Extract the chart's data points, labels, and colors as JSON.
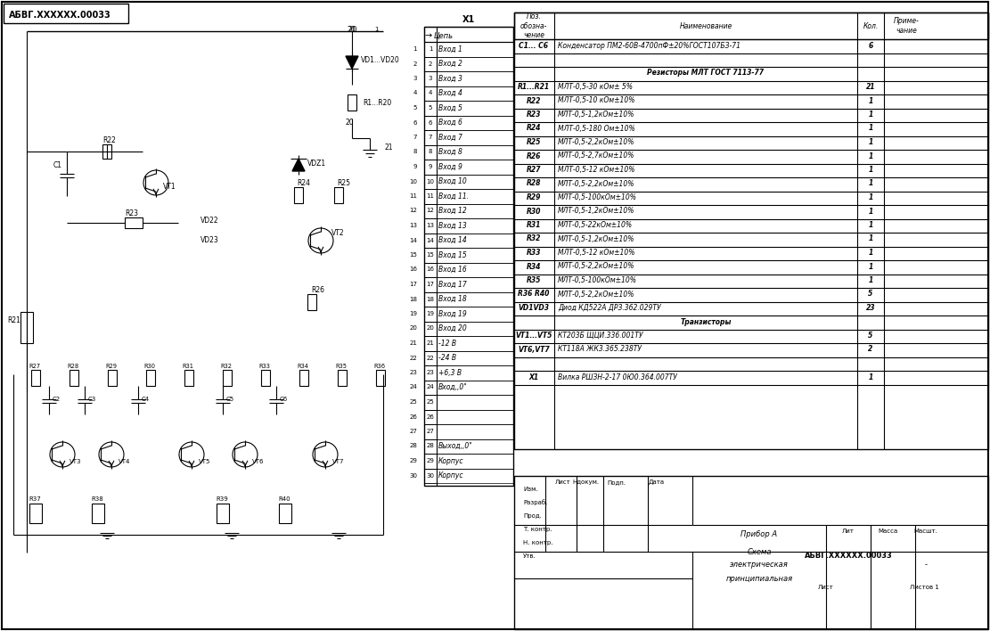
{
  "title": "АБВГ.XXXXXX.00033",
  "background": "#ffffff",
  "line_color": "#000000",
  "component_labels": {
    "top_label": "АБВГ.XXXXXX.00033",
    "connector": "X1",
    "connector_arrow": "→",
    "connector_col": "Цепь"
  },
  "bom_headers": [
    "Поз.\nобозна-\nчение",
    "Наименование",
    "Кол.",
    "Приме-\nчание"
  ],
  "bom_rows": [
    [
      "C1... C6",
      "Конденсатор ПМ2-60В-4700пФ±20%ГОСТ107БЗ-71",
      "6",
      ""
    ],
    [
      "",
      "",
      "",
      ""
    ],
    [
      "",
      "Резисторы МЛТ ГОСТ 7113-77",
      "",
      ""
    ],
    [
      "R1...R21",
      "МЛТ-0,5-30 кОм± 5%",
      "21",
      ""
    ],
    [
      "R22",
      "МЛТ-0,5-10 кОм±10%",
      "1",
      ""
    ],
    [
      "R23",
      "МЛТ-0,5-1,2кОм±10%",
      "1",
      ""
    ],
    [
      "R24",
      "МЛТ-0,5-180 Ом±10%",
      "1",
      ""
    ],
    [
      "R25",
      "МЛТ-0,5-2,2кОм±10%",
      "1",
      ""
    ],
    [
      "R26",
      "МЛТ-0,5-2,7кОм±10%",
      "1",
      ""
    ],
    [
      "R27",
      "МЛТ-0,5-12 кОм±10%",
      "1",
      ""
    ],
    [
      "R28",
      "МЛТ-0,5-2,2кОм±10%",
      "1",
      ""
    ],
    [
      "R29",
      "МЛТ-0,5-100кОм±10%",
      "1",
      ""
    ],
    [
      "R30",
      "МЛТ-0,5-1,2кОм±10%",
      "1",
      ""
    ],
    [
      "R31",
      "МЛТ-0,5-22кОм±10%",
      "1",
      ""
    ],
    [
      "R32",
      "МЛТ-0,5-1,2кОм±10%",
      "1",
      ""
    ],
    [
      "R33",
      "МЛТ-0,5-12 кОм±10%",
      "1",
      ""
    ],
    [
      "R34",
      "МЛТ-0,5-2,2кОм±10%",
      "1",
      ""
    ],
    [
      "R35",
      "МЛТ-0,5-100кОм±10%",
      "1",
      ""
    ],
    [
      "R36 R40",
      "МЛТ-0,5-2,2кОм±10%",
      "5",
      ""
    ],
    [
      "VD1VD3",
      "Диод КД522А ДРЗ.362.029ТУ",
      "23",
      ""
    ],
    [
      "",
      "Транзисторы",
      "",
      ""
    ],
    [
      "VT1...VT5",
      "КТ203Б ЩЦИ.336.001ТУ",
      "5",
      ""
    ],
    [
      "VT6,VT7",
      "КТ118А ЖК3.365.238ТУ",
      "2",
      ""
    ],
    [
      "",
      "",
      "",
      ""
    ],
    [
      "X1",
      "Вилка РШЗН-2-17 0Ю0.364.007ТУ",
      "1",
      ""
    ]
  ],
  "connector_rows": [
    [
      "1",
      "Вход 1"
    ],
    [
      "2",
      "Вход 2"
    ],
    [
      "3",
      "Вход 3"
    ],
    [
      "4",
      "Вход 4"
    ],
    [
      "5",
      "Вход 5"
    ],
    [
      "6",
      "Вход 6"
    ],
    [
      "7",
      "Вход 7"
    ],
    [
      "8",
      "Вход 8"
    ],
    [
      "9",
      "Вход 9"
    ],
    [
      "10",
      "Вход 10"
    ],
    [
      "11",
      "Вход 11."
    ],
    [
      "12",
      "Вход 12"
    ],
    [
      "13",
      "Вход 13"
    ],
    [
      "14",
      "Вход 14"
    ],
    [
      "15",
      "Вход 15"
    ],
    [
      "16",
      "Вход 16"
    ],
    [
      "17",
      "Вход 17"
    ],
    [
      "18",
      "Вход 18"
    ],
    [
      "19",
      "Вход 19"
    ],
    [
      "20",
      "Вход 20"
    ],
    [
      "21",
      "-12 В"
    ],
    [
      "22",
      "-24 В"
    ],
    [
      "23",
      "+6,3 В"
    ],
    [
      "24",
      "Вход,,0\""
    ],
    [
      "25",
      ""
    ],
    [
      "26",
      ""
    ],
    [
      "27",
      ""
    ],
    [
      "28",
      "Выход,,0\""
    ],
    [
      "29",
      "Корпус"
    ],
    [
      "30",
      "Корпус"
    ]
  ],
  "title_block": {
    "device": "Прибор А",
    "schema_type": "Схема\nэлектрическая\nпринципиальная",
    "code": "АБВГ.ХХХХХХ.00033",
    "sheet": "Лист",
    "sheets": "Листов 1",
    "liter": "Лит",
    "mass": "Масса",
    "scale": "Масшт.",
    "scale_val": "-",
    "izm": "Изм.",
    "list": "Лист",
    "nd": "Ндокум.",
    "podp": "Подп.",
    "data_lbl": "Дата",
    "razrab": "Разраб.",
    "prod": "Прод.",
    "t_kontr": "Т. контр.",
    "n_kontr": "Н. контр.",
    "utv": "Утв."
  }
}
